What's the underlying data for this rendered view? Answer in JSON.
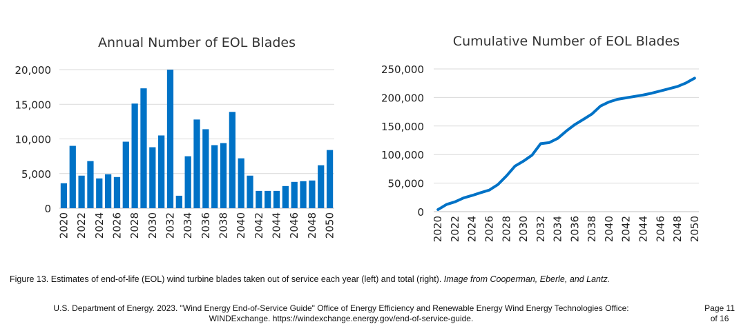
{
  "chart_data": [
    {
      "type": "bar",
      "title": "Annual Number of EOL Blades",
      "categories": [
        2020,
        2021,
        2022,
        2023,
        2024,
        2025,
        2026,
        2027,
        2028,
        2029,
        2030,
        2031,
        2032,
        2033,
        2034,
        2035,
        2036,
        2037,
        2038,
        2039,
        2040,
        2041,
        2042,
        2043,
        2044,
        2045,
        2046,
        2047,
        2048,
        2049,
        2050
      ],
      "tick_labels": [
        "2020",
        "2022",
        "2024",
        "2026",
        "2028",
        "2030",
        "2032",
        "2034",
        "2036",
        "2038",
        "2040",
        "2042",
        "2044",
        "2046",
        "2048",
        "2050"
      ],
      "values": [
        3600,
        9000,
        4700,
        6800,
        4300,
        4900,
        4500,
        9600,
        15100,
        17300,
        8800,
        10500,
        20000,
        1800,
        7500,
        12800,
        11400,
        9100,
        9400,
        13900,
        7200,
        4700,
        2500,
        2500,
        2500,
        3200,
        3800,
        3900,
        4000,
        6200,
        8400
      ],
      "ylim": [
        0,
        20000
      ],
      "yticks": [
        "0",
        "5,000",
        "10,000",
        "15,000",
        "20,000"
      ],
      "ytick_values": [
        0,
        5000,
        10000,
        15000,
        20000
      ],
      "color": "#0072c6",
      "grid": true
    },
    {
      "type": "line",
      "title": "Cumulative Number of EOL Blades",
      "x": [
        2020,
        2021,
        2022,
        2023,
        2024,
        2025,
        2026,
        2027,
        2028,
        2029,
        2030,
        2031,
        2032,
        2033,
        2034,
        2035,
        2036,
        2037,
        2038,
        2039,
        2040,
        2041,
        2042,
        2043,
        2044,
        2045,
        2046,
        2047,
        2048,
        2049,
        2050
      ],
      "tick_labels": [
        "2020",
        "2022",
        "2024",
        "2026",
        "2028",
        "2030",
        "2032",
        "2034",
        "2036",
        "2038",
        "2040",
        "2042",
        "2044",
        "2046",
        "2048",
        "2050"
      ],
      "values": [
        3600,
        12600,
        17300,
        24100,
        28400,
        33300,
        37800,
        47400,
        62500,
        79800,
        88600,
        99100,
        119100,
        120900,
        128400,
        141200,
        152600,
        161700,
        171100,
        185000,
        192200,
        196900,
        199400,
        201900,
        204400,
        207600,
        211400,
        215300,
        219300,
        225500,
        233900
      ],
      "ylim": [
        0,
        250000
      ],
      "yticks": [
        "0",
        "50,000",
        "100,000",
        "150,000",
        "200,000",
        "250,000"
      ],
      "ytick_values": [
        0,
        50000,
        100000,
        150000,
        200000,
        250000
      ],
      "color": "#0072c6",
      "grid": true
    }
  ],
  "caption": {
    "text": "Figure 13. Estimates of end-of-life (EOL) wind turbine blades taken out of service each year (left) and total (right).",
    "credit": "Image from Cooperman, Eberle, and Lantz."
  },
  "footer": {
    "line1": "U.S. Department of Energy. 2023. \"Wind Energy End-of-Service Guide\" Office of Energy Efficiency and Renewable Energy Wind Energy Technologies Office:",
    "line2": "WINDExchange. https://windexchange.energy.gov/end-of-service-guide."
  },
  "page": {
    "line1": "Page 11",
    "line2": "of 16"
  }
}
